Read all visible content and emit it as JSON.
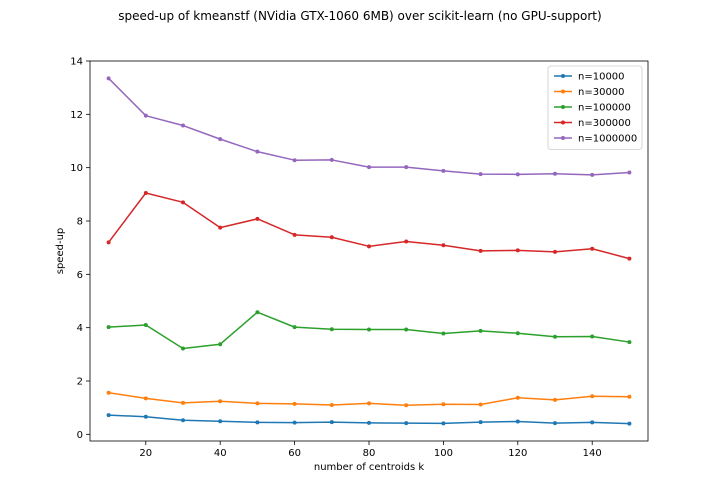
{
  "chart_data": {
    "type": "line",
    "title": "speed-up of kmeanstf (NVidia GTX-1060 6MB) over scikit-learn (no GPU-support)",
    "xlabel": "number of centroids k",
    "ylabel": "speed-up",
    "xlim": [
      5,
      155
    ],
    "ylim": [
      -0.25,
      14
    ],
    "xticks": [
      20,
      40,
      60,
      80,
      100,
      120,
      140
    ],
    "yticks": [
      0,
      2,
      4,
      6,
      8,
      10,
      12,
      14
    ],
    "grid": false,
    "legend_position": "top-right",
    "x": [
      10,
      20,
      30,
      40,
      50,
      60,
      70,
      80,
      90,
      100,
      110,
      120,
      130,
      140,
      150
    ],
    "series": [
      {
        "name": "n=10000",
        "color": "#1f77b4",
        "values": [
          0.72,
          0.66,
          0.53,
          0.49,
          0.45,
          0.44,
          0.46,
          0.43,
          0.42,
          0.41,
          0.46,
          0.48,
          0.42,
          0.45,
          0.4
        ]
      },
      {
        "name": "n=30000",
        "color": "#ff7f0e",
        "values": [
          1.56,
          1.35,
          1.18,
          1.24,
          1.16,
          1.14,
          1.1,
          1.16,
          1.09,
          1.13,
          1.12,
          1.37,
          1.29,
          1.43,
          1.41
        ]
      },
      {
        "name": "n=100000",
        "color": "#2ca02c",
        "values": [
          4.02,
          4.1,
          3.22,
          3.38,
          4.58,
          4.02,
          3.94,
          3.93,
          3.93,
          3.78,
          3.88,
          3.79,
          3.66,
          3.67,
          3.46
        ]
      },
      {
        "name": "n=300000",
        "color": "#d62728",
        "values": [
          7.2,
          9.05,
          8.7,
          7.75,
          8.08,
          7.48,
          7.39,
          7.05,
          7.23,
          7.09,
          6.88,
          6.9,
          6.84,
          6.96,
          6.59
        ]
      },
      {
        "name": "n=1000000",
        "color": "#9467bd",
        "values": [
          13.35,
          11.95,
          11.58,
          11.07,
          10.6,
          10.28,
          10.29,
          10.02,
          10.02,
          9.88,
          9.76,
          9.75,
          9.77,
          9.73,
          9.82
        ]
      }
    ]
  }
}
